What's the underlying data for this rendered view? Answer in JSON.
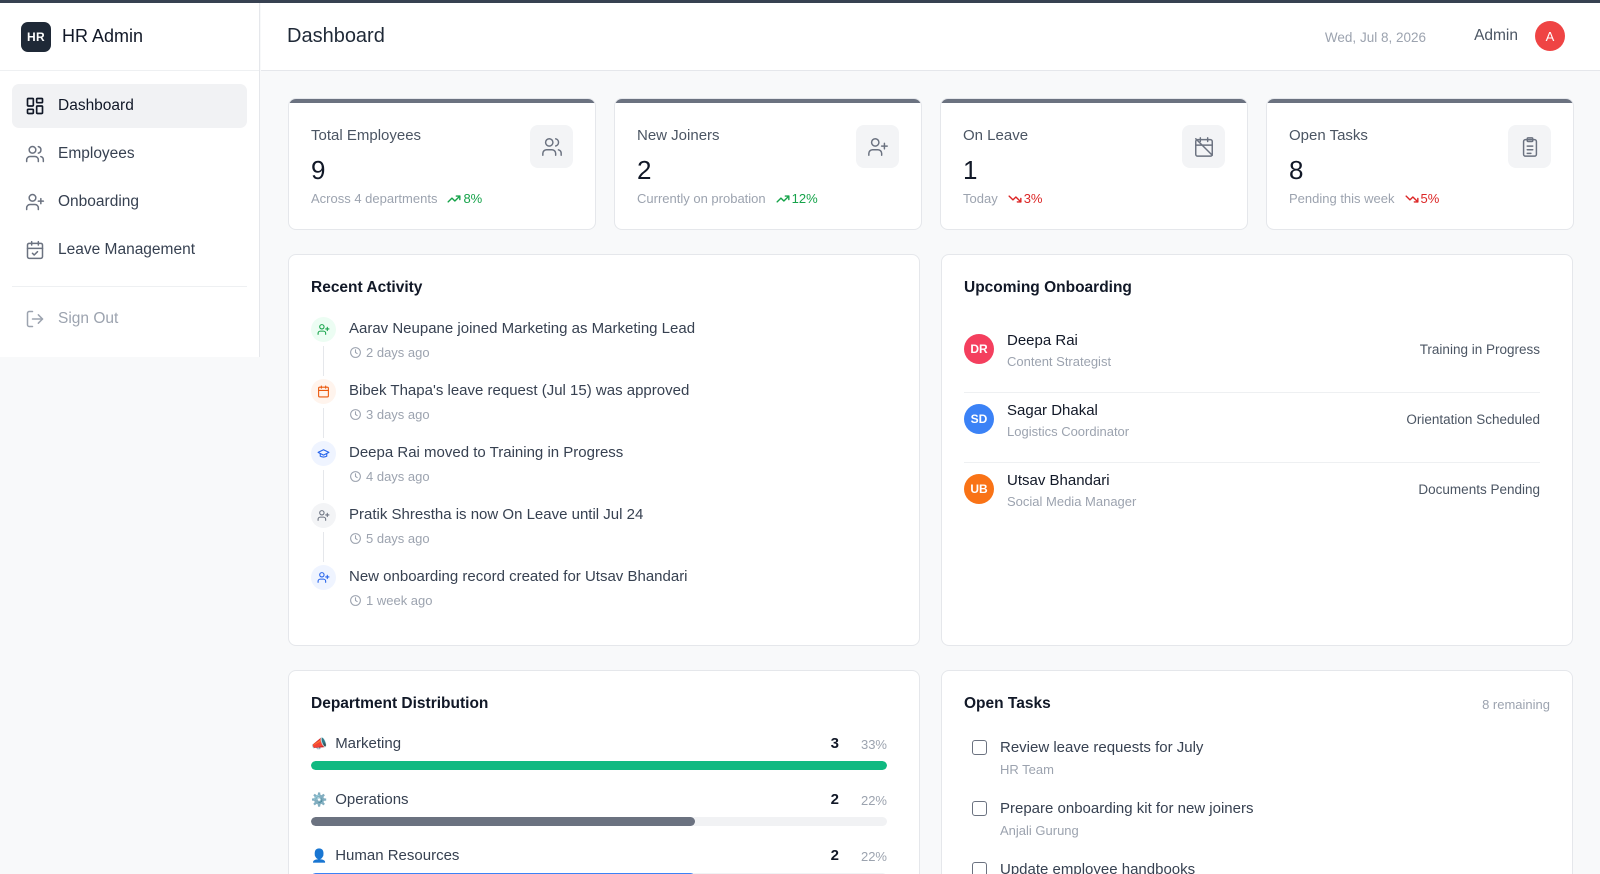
{
  "brand": {
    "logo_text": "HR",
    "name": "HR Admin"
  },
  "sidebar": {
    "items": [
      {
        "label": "Dashboard",
        "icon": "dashboard-grid-icon",
        "active": true
      },
      {
        "label": "Employees",
        "icon": "users-icon"
      },
      {
        "label": "Onboarding",
        "icon": "user-plus-icon"
      },
      {
        "label": "Leave Management",
        "icon": "calendar-check-icon"
      }
    ],
    "signout": {
      "label": "Sign Out",
      "icon": "log-out-icon"
    }
  },
  "header": {
    "title": "Dashboard",
    "date": "Wed, Jul 8, 2026",
    "user": "Admin",
    "avatar_initial": "A"
  },
  "stats": [
    {
      "label": "Total Employees",
      "value": "9",
      "sub": "Across 4 departments",
      "trend": "8%",
      "direction": "up",
      "icon": "users-icon"
    },
    {
      "label": "New Joiners",
      "value": "2",
      "sub": "Currently on probation",
      "trend": "12%",
      "direction": "up",
      "icon": "user-plus-icon"
    },
    {
      "label": "On Leave",
      "value": "1",
      "sub": "Today",
      "trend": "3%",
      "direction": "down",
      "icon": "calendar-off-icon"
    },
    {
      "label": "Open Tasks",
      "value": "8",
      "sub": "Pending this week",
      "trend": "5%",
      "direction": "down",
      "icon": "clipboard-icon"
    }
  ],
  "activity": {
    "title": "Recent Activity",
    "items": [
      {
        "text": "Aarav Neupane joined Marketing as Marketing Lead",
        "time": "2 days ago",
        "icon": "user-plus-icon",
        "color": "#16a34a",
        "bg": "#ecfdf3"
      },
      {
        "text": "Bibek Thapa's leave request (Jul 15) was approved",
        "time": "3 days ago",
        "icon": "calendar-icon",
        "color": "#ea580c",
        "bg": "#fff4ed"
      },
      {
        "text": "Deepa Rai moved to Training in Progress",
        "time": "4 days ago",
        "icon": "graduation-cap-icon",
        "color": "#2563eb",
        "bg": "#eff4ff"
      },
      {
        "text": "Pratik Shrestha is now On Leave until Jul 24",
        "time": "5 days ago",
        "icon": "user-plus-icon",
        "color": "#6b7280",
        "bg": "#f3f4f6"
      },
      {
        "text": "New onboarding record created for Utsav Bhandari",
        "time": "1 week ago",
        "icon": "user-plus-icon",
        "color": "#2563eb",
        "bg": "#eff4ff"
      }
    ]
  },
  "onboarding": {
    "title": "Upcoming Onboarding",
    "items": [
      {
        "initials": "DR",
        "name": "Deepa Rai",
        "role": "Content Strategist",
        "status": "Training in Progress",
        "color": "#f43f5e"
      },
      {
        "initials": "SD",
        "name": "Sagar Dhakal",
        "role": "Logistics Coordinator",
        "status": "Orientation Scheduled",
        "color": "#3b82f6"
      },
      {
        "initials": "UB",
        "name": "Utsav Bhandari",
        "role": "Social Media Manager",
        "status": "Documents Pending",
        "color": "#f97316"
      }
    ]
  },
  "departments": {
    "title": "Department Distribution",
    "items": [
      {
        "emoji": "📣",
        "name": "Marketing",
        "count": "3",
        "pct": "33%",
        "fill": 1.0,
        "color": "#10b981"
      },
      {
        "emoji": "⚙️",
        "name": "Operations",
        "count": "2",
        "pct": "22%",
        "fill": 0.667,
        "color": "#6b7280"
      },
      {
        "emoji": "👤",
        "name": "Human Resources",
        "count": "2",
        "pct": "22%",
        "fill": 0.667,
        "color": "#3b82f6"
      }
    ]
  },
  "tasks": {
    "title": "Open Tasks",
    "remaining": "8 remaining",
    "items": [
      {
        "title": "Review leave requests for July",
        "owner": "HR Team"
      },
      {
        "title": "Prepare onboarding kit for new joiners",
        "owner": "Anjali Gurung"
      },
      {
        "title": "Update employee handbooks",
        "owner": ""
      }
    ]
  }
}
